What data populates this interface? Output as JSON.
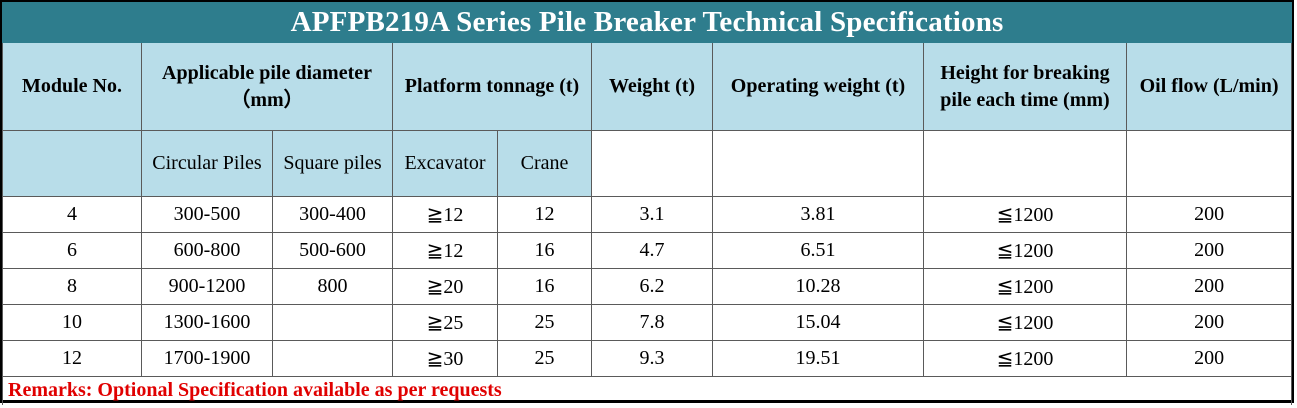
{
  "title": "APFPB219A Series Pile Breaker Technical Specifications",
  "headers": {
    "module": "Module No.",
    "diameter": "Applicable pile diameter",
    "diameter_unit": "（mm）",
    "tonnage": "Platform tonnage (t)",
    "weight": "Weight (t)",
    "operating_weight": "Operating weight (t)",
    "height_line1": "Height for breaking",
    "height_line2": "pile each time (mm)",
    "oil": "Oil flow (L/min)"
  },
  "subheaders": {
    "circular": "Circular Piles",
    "square": "Square piles",
    "excavator": "Excavator",
    "crane": "Crane"
  },
  "rows": [
    [
      "4",
      "300-500",
      "300-400",
      "≧12",
      "12",
      "3.1",
      "3.81",
      "≦1200",
      "200"
    ],
    [
      "6",
      "600-800",
      "500-600",
      "≧12",
      "16",
      "4.7",
      "6.51",
      "≦1200",
      "200"
    ],
    [
      "8",
      "900-1200",
      "800",
      "≧20",
      "16",
      "6.2",
      "10.28",
      "≦1200",
      "200"
    ],
    [
      "10",
      "1300-1600",
      "",
      "≧25",
      "25",
      "7.8",
      "15.04",
      "≦1200",
      "200"
    ],
    [
      "12",
      "1700-1900",
      "",
      "≧30",
      "25",
      "9.3",
      "19.51",
      "≦1200",
      "200"
    ]
  ],
  "remarks": "Remarks: Optional Specification available as per requests"
}
